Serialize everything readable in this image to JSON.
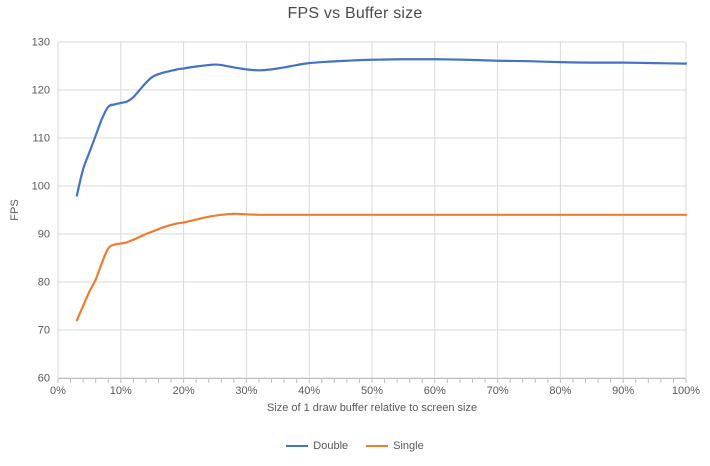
{
  "chart_data": {
    "type": "line",
    "title": "FPS vs Buffer size",
    "xlabel": "Size of 1 draw buffer relative to screen size",
    "ylabel": "FPS",
    "xlim": [
      0,
      100
    ],
    "ylim": [
      60,
      130
    ],
    "x_ticks": [
      0,
      10,
      20,
      30,
      40,
      50,
      60,
      70,
      80,
      90,
      100
    ],
    "x_tick_labels": [
      "0%",
      "10%",
      "20%",
      "30%",
      "40%",
      "50%",
      "60%",
      "70%",
      "80%",
      "90%",
      "100%"
    ],
    "y_ticks": [
      60,
      70,
      80,
      90,
      100,
      110,
      120,
      130
    ],
    "x_minor_tick_step": 2,
    "grid": true,
    "legend_position": "bottom",
    "colors": {
      "gridline": "#d9d9d9",
      "axis_line": "#bfbfbf",
      "tick": "#bfbfbf",
      "tick_label": "#595959",
      "title": "#4a4a4a",
      "background": "#ffffff"
    },
    "series": [
      {
        "name": "Double",
        "color": "#4472C4",
        "points": [
          [
            3,
            98
          ],
          [
            4,
            103.5
          ],
          [
            5,
            107
          ],
          [
            6,
            110.5
          ],
          [
            7,
            114
          ],
          [
            8,
            116.5
          ],
          [
            9,
            117
          ],
          [
            10,
            117.3
          ],
          [
            11,
            117.6
          ],
          [
            12,
            118.5
          ],
          [
            13,
            120
          ],
          [
            14,
            121.5
          ],
          [
            15,
            122.7
          ],
          [
            16,
            123.3
          ],
          [
            17,
            123.7
          ],
          [
            18,
            124
          ],
          [
            19,
            124.3
          ],
          [
            20,
            124.5
          ],
          [
            22,
            124.9
          ],
          [
            24,
            125.2
          ],
          [
            25,
            125.3
          ],
          [
            26,
            125.2
          ],
          [
            28,
            124.7
          ],
          [
            30,
            124.3
          ],
          [
            32,
            124.1
          ],
          [
            34,
            124.3
          ],
          [
            36,
            124.7
          ],
          [
            38,
            125.2
          ],
          [
            40,
            125.6
          ],
          [
            43,
            125.9
          ],
          [
            46,
            126.1
          ],
          [
            50,
            126.3
          ],
          [
            55,
            126.4
          ],
          [
            60,
            126.4
          ],
          [
            65,
            126.3
          ],
          [
            70,
            126.1
          ],
          [
            75,
            126
          ],
          [
            80,
            125.8
          ],
          [
            85,
            125.7
          ],
          [
            90,
            125.7
          ],
          [
            95,
            125.6
          ],
          [
            100,
            125.5
          ]
        ]
      },
      {
        "name": "Single",
        "color": "#ED7D31",
        "points": [
          [
            3,
            72
          ],
          [
            4,
            75
          ],
          [
            5,
            78
          ],
          [
            6,
            80.5
          ],
          [
            7,
            84
          ],
          [
            8,
            87
          ],
          [
            9,
            87.8
          ],
          [
            10,
            88
          ],
          [
            11,
            88.3
          ],
          [
            12,
            88.8
          ],
          [
            13,
            89.4
          ],
          [
            14,
            90
          ],
          [
            15,
            90.5
          ],
          [
            16,
            91
          ],
          [
            17,
            91.5
          ],
          [
            18,
            91.9
          ],
          [
            19,
            92.2
          ],
          [
            20,
            92.4
          ],
          [
            22,
            93
          ],
          [
            24,
            93.6
          ],
          [
            26,
            94
          ],
          [
            28,
            94.2
          ],
          [
            30,
            94.1
          ],
          [
            32,
            94
          ],
          [
            35,
            94
          ],
          [
            40,
            94
          ],
          [
            45,
            94
          ],
          [
            50,
            94
          ],
          [
            55,
            94
          ],
          [
            60,
            94
          ],
          [
            65,
            94
          ],
          [
            70,
            94
          ],
          [
            75,
            94
          ],
          [
            80,
            94
          ],
          [
            85,
            94
          ],
          [
            90,
            94
          ],
          [
            95,
            94
          ],
          [
            100,
            94
          ]
        ]
      }
    ]
  }
}
